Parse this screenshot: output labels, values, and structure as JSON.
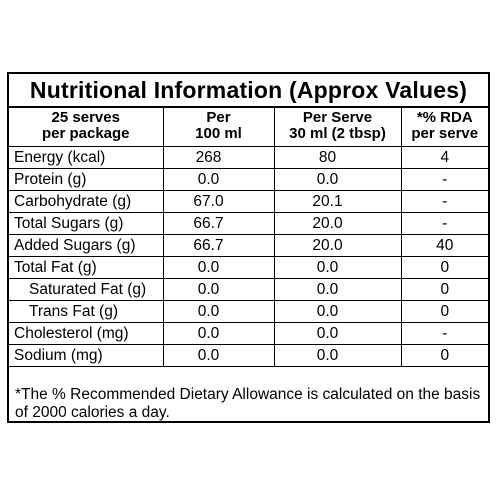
{
  "title": "Nutritional Information (Approx Values)",
  "header": {
    "col1": [
      "25 serves",
      "per package"
    ],
    "col2": [
      "Per",
      "100 ml"
    ],
    "col3": [
      "Per Serve",
      "30 ml (2 tbsp)"
    ],
    "col4": [
      "*% RDA",
      "per serve"
    ]
  },
  "rows": [
    {
      "name": "Energy (kcal)",
      "per100": "268",
      "perServe": "80",
      "rda": "4",
      "sub": false
    },
    {
      "name": "Protein (g)",
      "per100": "0.0",
      "perServe": "0.0",
      "rda": "-",
      "sub": false
    },
    {
      "name": "Carbohydrate (g)",
      "per100": "67.0",
      "perServe": "20.1",
      "rda": "-",
      "sub": false
    },
    {
      "name": "Total Sugars (g)",
      "per100": "66.7",
      "perServe": "20.0",
      "rda": "-",
      "sub": false
    },
    {
      "name": "Added Sugars (g)",
      "per100": "66.7",
      "perServe": "20.0",
      "rda": "40",
      "sub": false
    },
    {
      "name": "Total Fat (g)",
      "per100": "0.0",
      "perServe": "0.0",
      "rda": "0",
      "sub": false
    },
    {
      "name": "Saturated Fat (g)",
      "per100": "0.0",
      "perServe": "0.0",
      "rda": "0",
      "sub": true
    },
    {
      "name": "Trans Fat (g)",
      "per100": "0.0",
      "perServe": "0.0",
      "rda": "0",
      "sub": true
    },
    {
      "name": "Cholesterol (mg)",
      "per100": "0.0",
      "perServe": "0.0",
      "rda": "-",
      "sub": false
    },
    {
      "name": "Sodium (mg)",
      "per100": "0.0",
      "perServe": "0.0",
      "rda": "0",
      "sub": false
    }
  ],
  "footnote": "*The % Recommended Dietary Allowance is calculated on the basis of 2000 calories a day."
}
